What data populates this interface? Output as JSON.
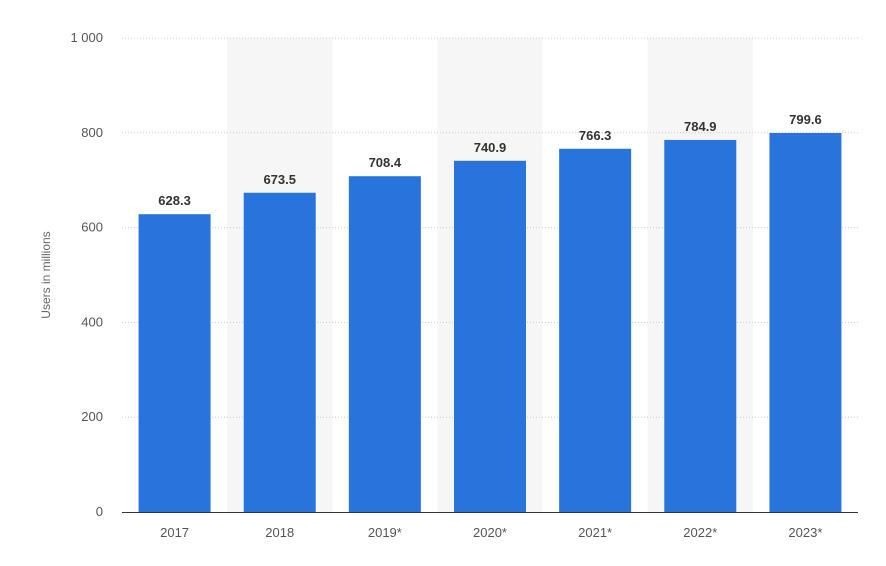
{
  "chart_data": {
    "type": "bar",
    "title": "",
    "xlabel": "",
    "ylabel": "Users in millions",
    "categories": [
      "2017",
      "2018",
      "2019*",
      "2020*",
      "2021*",
      "2022*",
      "2023*"
    ],
    "values": [
      628.3,
      673.5,
      708.4,
      740.9,
      766.3,
      784.9,
      799.6
    ],
    "value_labels": [
      "628.3",
      "673.5",
      "708.4",
      "740.9",
      "766.3",
      "784.9",
      "799.6"
    ],
    "ylim": [
      0,
      1000
    ],
    "yticks": [
      0,
      200,
      400,
      600,
      800,
      1000
    ],
    "ytick_labels": [
      "0",
      "200",
      "400",
      "600",
      "800",
      "1 000"
    ],
    "grid": true,
    "legend": "none",
    "colors": {
      "bar": "#2874dc",
      "band": "#f6f6f6",
      "grid": "#cccccc",
      "axis": "#333333"
    }
  }
}
